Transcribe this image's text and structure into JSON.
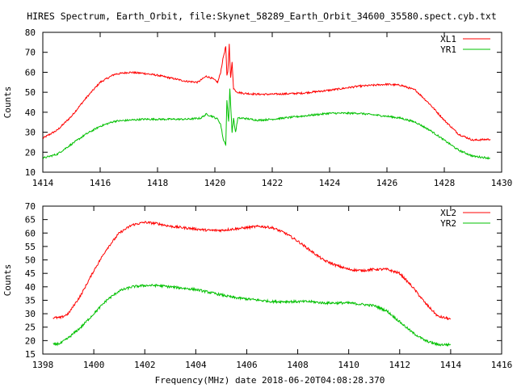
{
  "title": "HIRES Spectrum, Earth_Orbit, file:Skynet_58289_Earth_Orbit_34600_35580.spect.cyb.txt",
  "xlabel": "Frequency(MHz) date 2018-06-20T04:08:28.370",
  "chart_data": [
    {
      "type": "line",
      "ylabel": "Counts",
      "xlim": [
        1414,
        1430
      ],
      "ylim": [
        10,
        80
      ],
      "xticks": [
        "1414",
        "1416",
        "1418",
        "1420",
        "1422",
        "1424",
        "1426",
        "1428",
        "1430"
      ],
      "yticks": [
        "10",
        "20",
        "30",
        "40",
        "50",
        "60",
        "70",
        "80"
      ],
      "grid": false,
      "legend_position": "top-right",
      "series": [
        {
          "name": "XL1",
          "color": "#ff0000",
          "x": [
            1414.0,
            1414.5,
            1415.0,
            1415.5,
            1416.0,
            1416.5,
            1417.0,
            1417.5,
            1418.0,
            1418.5,
            1419.0,
            1419.4,
            1419.7,
            1419.9,
            1420.1,
            1420.2,
            1420.3,
            1420.38,
            1420.42,
            1420.45,
            1420.5,
            1420.55,
            1420.6,
            1420.65,
            1420.7,
            1420.8,
            1421.0,
            1421.5,
            1422.0,
            1423.0,
            1424.0,
            1425.0,
            1426.0,
            1426.5,
            1427.0,
            1427.5,
            1428.0,
            1428.5,
            1429.0,
            1429.6
          ],
          "y": [
            27,
            31,
            38,
            47,
            55,
            59,
            60,
            59.5,
            58.5,
            57,
            55.5,
            55,
            58,
            57,
            55,
            60,
            68,
            73,
            58,
            60,
            74,
            57,
            65,
            52,
            51,
            50,
            49.5,
            49,
            49,
            49.5,
            51,
            53,
            54,
            53.5,
            51,
            44,
            36,
            29,
            26,
            26.5
          ]
        },
        {
          "name": "YR1",
          "color": "#00c000",
          "x": [
            1414.0,
            1414.5,
            1415.0,
            1415.5,
            1416.0,
            1416.5,
            1417.0,
            1417.5,
            1418.0,
            1418.5,
            1419.0,
            1419.5,
            1419.7,
            1419.9,
            1420.1,
            1420.2,
            1420.3,
            1420.38,
            1420.42,
            1420.48,
            1420.52,
            1420.6,
            1420.65,
            1420.72,
            1420.8,
            1421.0,
            1421.5,
            1422.0,
            1423.0,
            1424.0,
            1425.0,
            1426.0,
            1426.5,
            1427.0,
            1427.5,
            1428.0,
            1428.5,
            1429.0,
            1429.6
          ],
          "y": [
            17,
            19,
            24,
            29,
            33,
            35.5,
            36,
            36.5,
            36.5,
            36.5,
            36.5,
            37,
            39,
            38,
            36.5,
            34,
            26,
            24,
            46,
            35,
            52,
            30,
            37,
            30,
            37,
            37,
            36,
            36.5,
            38,
            39.5,
            39.5,
            38,
            37,
            35,
            31,
            26,
            21,
            18,
            17
          ]
        }
      ]
    },
    {
      "type": "line",
      "ylabel": "Counts",
      "xlim": [
        1398,
        1416
      ],
      "ylim": [
        15,
        70
      ],
      "xticks": [
        "1398",
        "1400",
        "1402",
        "1404",
        "1406",
        "1408",
        "1410",
        "1412",
        "1414",
        "1416"
      ],
      "yticks": [
        "15",
        "20",
        "25",
        "30",
        "35",
        "40",
        "45",
        "50",
        "55",
        "60",
        "65",
        "70"
      ],
      "grid": false,
      "legend_position": "top-right",
      "series": [
        {
          "name": "XL2",
          "color": "#ff0000",
          "x": [
            1398.4,
            1398.7,
            1399.0,
            1399.5,
            1400.0,
            1400.5,
            1401.0,
            1401.5,
            1402.0,
            1402.5,
            1403.0,
            1403.5,
            1404.0,
            1404.5,
            1405.0,
            1405.5,
            1406.0,
            1406.5,
            1407.0,
            1407.5,
            1408.0,
            1408.5,
            1409.0,
            1409.5,
            1410.0,
            1410.5,
            1411.0,
            1411.5,
            1412.0,
            1412.5,
            1413.0,
            1413.5,
            1414.0
          ],
          "y": [
            28.5,
            28.5,
            30,
            37,
            46,
            54,
            60,
            63,
            64,
            63.5,
            62.5,
            62,
            61.5,
            61,
            61,
            61.5,
            62,
            62.5,
            62,
            60,
            57,
            53.5,
            50,
            48,
            46.5,
            46,
            46.5,
            46.5,
            45,
            40,
            34,
            29,
            28
          ]
        },
        {
          "name": "YR2",
          "color": "#00c000",
          "x": [
            1398.4,
            1398.7,
            1399.0,
            1399.5,
            1400.0,
            1400.5,
            1401.0,
            1401.5,
            1402.0,
            1402.5,
            1403.0,
            1403.5,
            1404.0,
            1404.5,
            1405.0,
            1405.5,
            1406.0,
            1406.5,
            1407.0,
            1407.5,
            1408.0,
            1408.5,
            1409.0,
            1409.5,
            1410.0,
            1410.5,
            1411.0,
            1411.5,
            1412.0,
            1412.5,
            1413.0,
            1413.5,
            1414.0
          ],
          "y": [
            18.5,
            19,
            21,
            25,
            30,
            35,
            38.5,
            40,
            40.5,
            40.5,
            40,
            39.5,
            39,
            38,
            37,
            36,
            35.5,
            35,
            34.5,
            34.5,
            34.5,
            34.5,
            34,
            34,
            34,
            33.5,
            33,
            31,
            27,
            23,
            20,
            18.5,
            18.5
          ]
        }
      ]
    }
  ]
}
